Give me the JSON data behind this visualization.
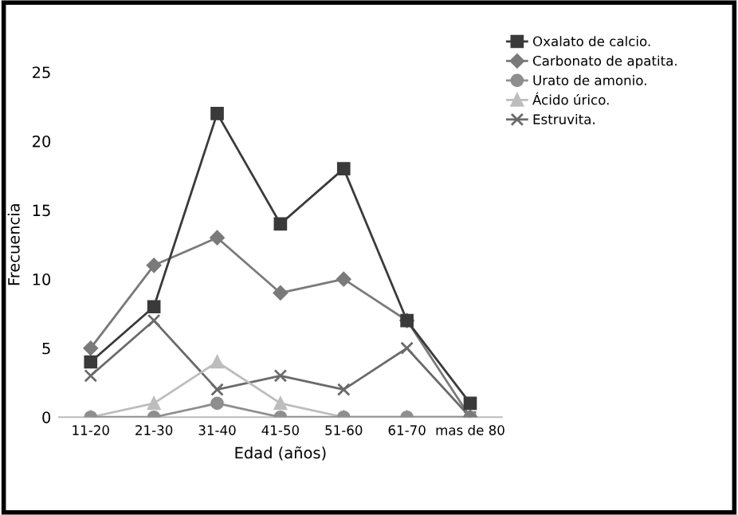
{
  "chart_data": {
    "type": "line",
    "xlabel": "Edad (años)",
    "ylabel": "Frecuencia",
    "categories": [
      "11-20",
      "21-30",
      "31-40",
      "41-50",
      "51-60",
      "61-70",
      "mas de 80"
    ],
    "series": [
      {
        "name": "Oxalato de calcio.",
        "color": "#3a3a3a",
        "marker": "square",
        "values": [
          4,
          8,
          22,
          14,
          18,
          7,
          1
        ]
      },
      {
        "name": "Carbonato de apatita.",
        "color": "#7a7a7a",
        "marker": "diamond",
        "values": [
          5,
          11,
          13,
          9,
          10,
          7,
          0
        ]
      },
      {
        "name": "Urato de amonio.",
        "color": "#8e8e8e",
        "marker": "circle",
        "values": [
          0,
          0,
          1,
          0,
          0,
          0,
          0
        ]
      },
      {
        "name": "Ácido úrico.",
        "color": "#bdbdbd",
        "marker": "triangle",
        "values": [
          0,
          1,
          4,
          1,
          0,
          0,
          0
        ]
      },
      {
        "name": "Estruvita.",
        "color": "#6a6a6a",
        "marker": "cross",
        "values": [
          3,
          7,
          2,
          3,
          2,
          5,
          0
        ]
      }
    ],
    "ylim": [
      0,
      25
    ],
    "yticks": [
      0,
      5,
      10,
      15,
      20,
      25
    ],
    "grid": false,
    "legend": "top right"
  }
}
